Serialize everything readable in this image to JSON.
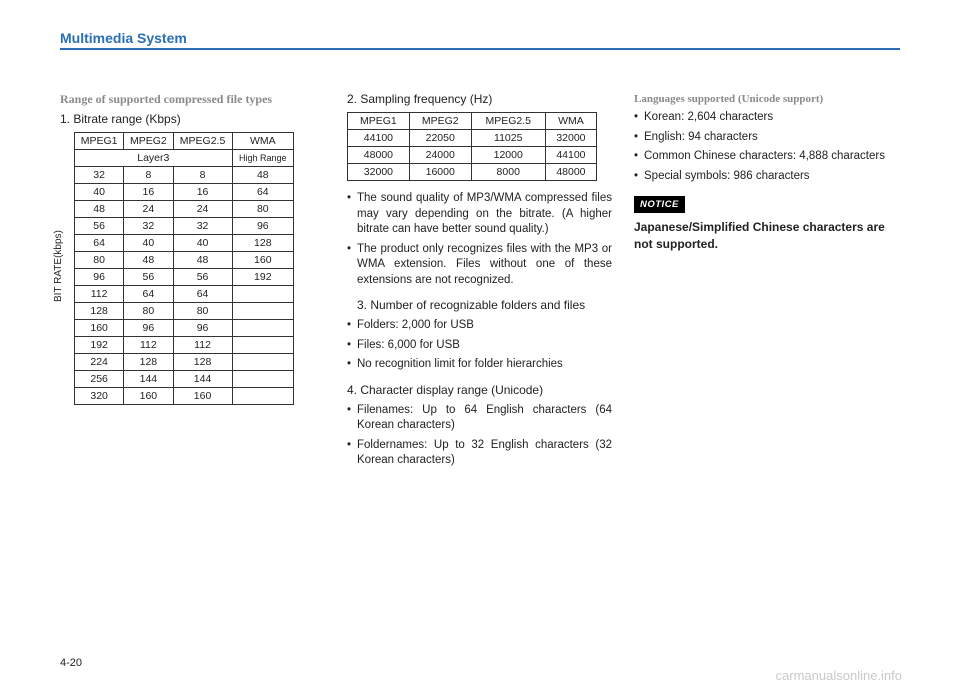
{
  "header": {
    "title": "Multimedia System"
  },
  "page_number": "4-20",
  "watermark": "carmanualsonline.info",
  "col1": {
    "heading": "Range of supported compressed file types",
    "sub1": "1. Bitrate range (Kbps)",
    "bitrate_label": "BIT RATE(kbps)",
    "table1": {
      "headers": [
        "MPEG1",
        "MPEG2",
        "MPEG2.5",
        "WMA"
      ],
      "sub_left": "Layer3",
      "sub_right": "High Range",
      "rows": [
        [
          "32",
          "8",
          "8",
          "48"
        ],
        [
          "40",
          "16",
          "16",
          "64"
        ],
        [
          "48",
          "24",
          "24",
          "80"
        ],
        [
          "56",
          "32",
          "32",
          "96"
        ],
        [
          "64",
          "40",
          "40",
          "128"
        ],
        [
          "80",
          "48",
          "48",
          "160"
        ],
        [
          "96",
          "56",
          "56",
          "192"
        ],
        [
          "112",
          "64",
          "64",
          ""
        ],
        [
          "128",
          "80",
          "80",
          ""
        ],
        [
          "160",
          "96",
          "96",
          ""
        ],
        [
          "192",
          "112",
          "112",
          ""
        ],
        [
          "224",
          "128",
          "128",
          ""
        ],
        [
          "256",
          "144",
          "144",
          ""
        ],
        [
          "320",
          "160",
          "160",
          ""
        ]
      ]
    }
  },
  "col2": {
    "sub2": "2. Sampling frequency (Hz)",
    "table2": {
      "headers": [
        "MPEG1",
        "MPEG2",
        "MPEG2.5",
        "WMA"
      ],
      "rows": [
        [
          "44100",
          "22050",
          "11025",
          "32000"
        ],
        [
          "48000",
          "24000",
          "12000",
          "44100"
        ],
        [
          "32000",
          "16000",
          "8000",
          "48000"
        ]
      ]
    },
    "bullets_a": [
      "The sound quality of MP3/WMA compressed files may vary depending on the bitrate. (A higher bitrate can have better sound quality.)",
      "The product only recognizes files with the MP3 or WMA extension. Files without one of these extensions are not recognized."
    ],
    "sub3": "3. Number of recognizable folders and files",
    "bullets_b": [
      "Folders: 2,000 for USB",
      "Files: 6,000 for USB",
      "No recognition limit for folder hierarchies"
    ],
    "sub4": "4. Character display range (Unicode)",
    "bullets_c": [
      "Filenames: Up to 64 English characters (64 Korean characters)",
      "Foldernames: Up to 32 English characters (32 Korean characters)"
    ]
  },
  "col3": {
    "heading": "Languages supported (Unicode support)",
    "bullets": [
      "Korean: 2,604 characters",
      "English: 94 characters",
      "Common Chinese characters: 4,888 characters",
      "Special symbols: 986 characters"
    ],
    "notice_label": "NOTICE",
    "notice_text": "Japanese/Simplified Chinese characters are not supported."
  }
}
